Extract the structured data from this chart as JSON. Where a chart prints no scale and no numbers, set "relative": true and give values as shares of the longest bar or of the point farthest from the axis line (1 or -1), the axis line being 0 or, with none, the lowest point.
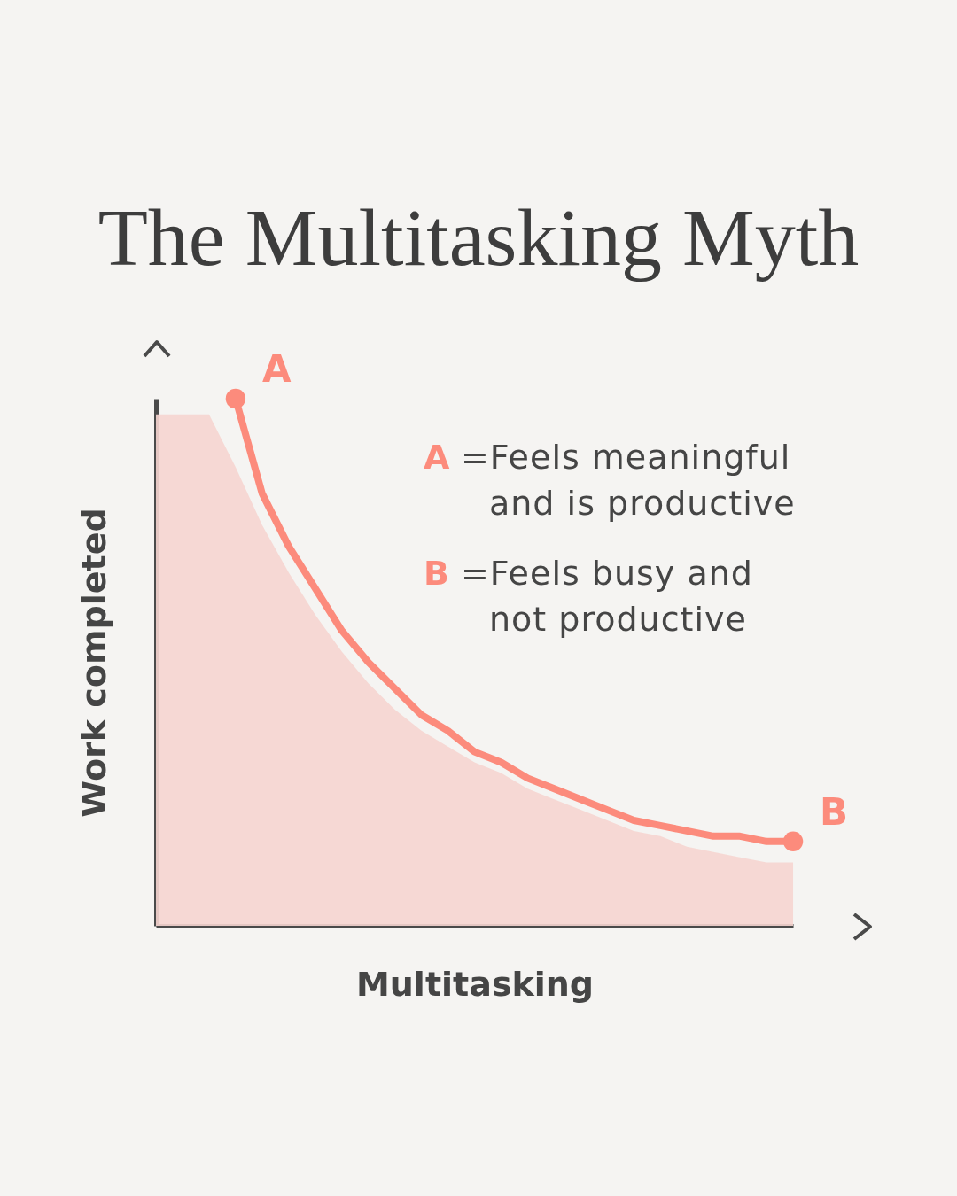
{
  "chart_data": {
    "type": "line",
    "title": "The Multitasking Myth",
    "xlabel": "Multitasking",
    "ylabel": "Work completed",
    "relative": true,
    "categories": [
      null,
      null,
      null,
      null,
      null,
      null,
      null,
      null,
      null,
      null,
      null,
      null,
      null,
      null,
      null,
      null,
      null,
      null,
      null,
      null,
      null,
      null,
      null,
      null,
      null
    ],
    "series": [
      {
        "type": "area",
        "color": "#f6d5d0",
        "values": [
          0.97,
          0.97,
          0.97,
          0.87,
          0.76,
          0.67,
          0.59,
          0.52,
          0.46,
          0.41,
          0.37,
          0.34,
          0.31,
          0.29,
          0.26,
          0.24,
          0.22,
          0.2,
          0.18,
          0.17,
          0.15,
          0.14,
          0.13,
          0.12,
          0.12
        ]
      },
      {
        "color": "#fc8b7c",
        "values": [
          null,
          null,
          null,
          1,
          0.82,
          0.72,
          0.64,
          0.56,
          0.5,
          0.45,
          0.4,
          0.37,
          0.33,
          0.31,
          0.28,
          0.26,
          0.24,
          0.22,
          0.2,
          0.19,
          0.18,
          0.17,
          0.17,
          0.16,
          0.16
        ]
      }
    ],
    "annotations": [
      "A",
      "B",
      "A =Feels meaningful and is productive",
      "B =Feels busy and not productive"
    ]
  }
}
